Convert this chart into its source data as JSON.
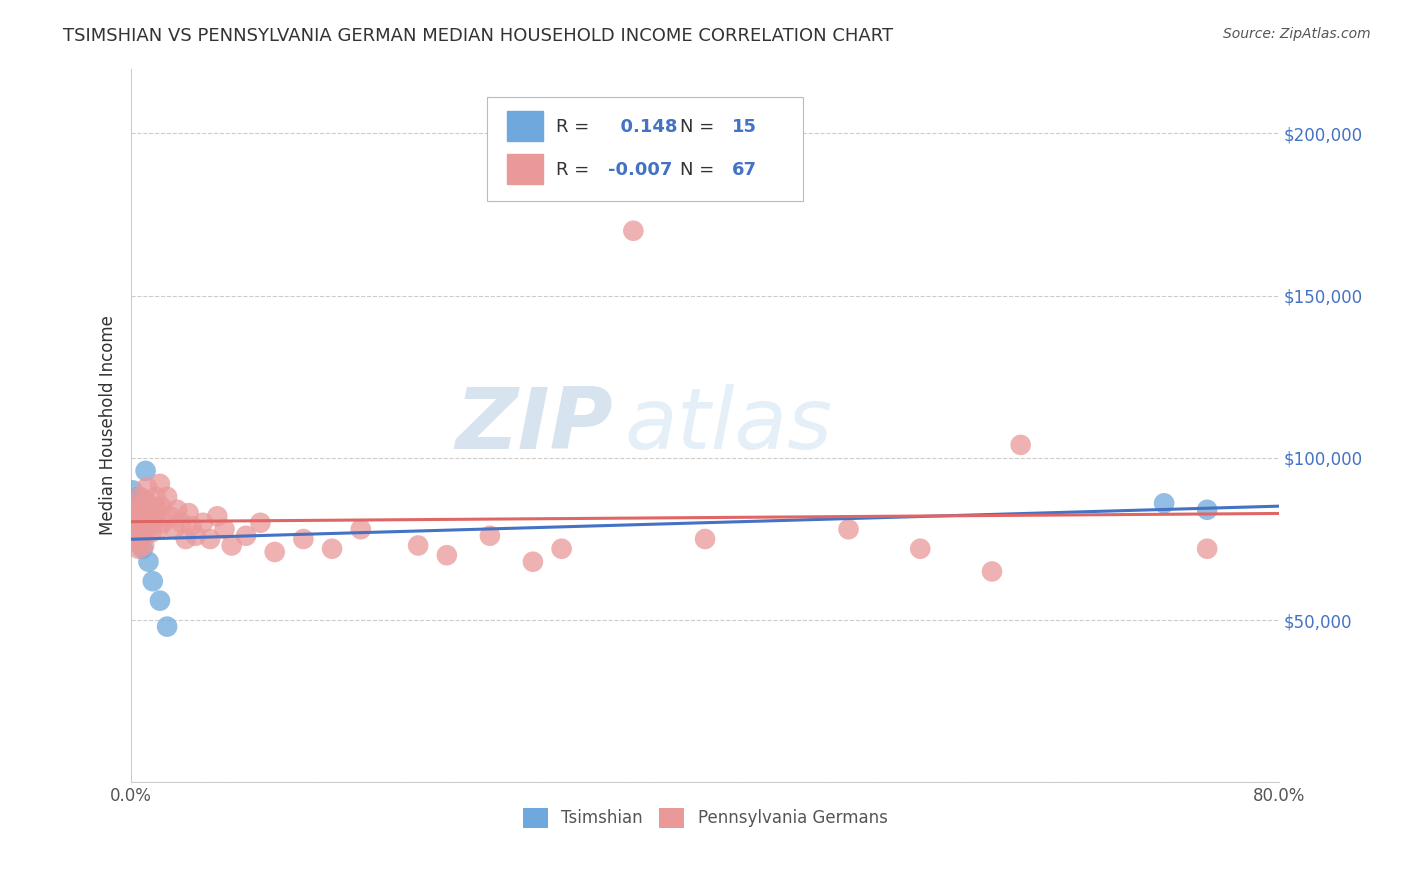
{
  "title": "TSIMSHIAN VS PENNSYLVANIA GERMAN MEDIAN HOUSEHOLD INCOME CORRELATION CHART",
  "source": "Source: ZipAtlas.com",
  "ylabel": "Median Household Income",
  "watermark_zip": "ZIP",
  "watermark_atlas": "atlas",
  "series": [
    {
      "name": "Tsimshian",
      "color_scatter": "#6fa8dc",
      "color_line": "#4472c4",
      "R": 0.148,
      "N": 15,
      "x": [
        0.001,
        0.002,
        0.003,
        0.004,
        0.005,
        0.006,
        0.007,
        0.008,
        0.01,
        0.012,
        0.015,
        0.02,
        0.025,
        0.72,
        0.75
      ],
      "y": [
        90000,
        78000,
        83000,
        75000,
        88000,
        82000,
        76000,
        72000,
        96000,
        68000,
        62000,
        56000,
        48000,
        86000,
        84000
      ]
    },
    {
      "name": "Pennsylvania Germans",
      "color_scatter": "#ea9999",
      "color_line": "#e06666",
      "R": -0.007,
      "N": 67,
      "x": [
        0.001,
        0.002,
        0.002,
        0.003,
        0.003,
        0.004,
        0.004,
        0.005,
        0.005,
        0.005,
        0.006,
        0.006,
        0.006,
        0.007,
        0.007,
        0.008,
        0.008,
        0.009,
        0.009,
        0.01,
        0.01,
        0.011,
        0.012,
        0.012,
        0.013,
        0.014,
        0.015,
        0.015,
        0.016,
        0.017,
        0.018,
        0.019,
        0.02,
        0.021,
        0.022,
        0.025,
        0.027,
        0.03,
        0.032,
        0.035,
        0.038,
        0.04,
        0.042,
        0.045,
        0.05,
        0.055,
        0.06,
        0.065,
        0.07,
        0.08,
        0.09,
        0.1,
        0.12,
        0.14,
        0.16,
        0.2,
        0.22,
        0.25,
        0.28,
        0.3,
        0.35,
        0.4,
        0.5,
        0.55,
        0.6,
        0.62,
        0.75
      ],
      "y": [
        78000,
        82000,
        75000,
        80000,
        74000,
        85000,
        79000,
        83000,
        76000,
        72000,
        88000,
        81000,
        77000,
        85000,
        79000,
        83000,
        76000,
        80000,
        73000,
        87000,
        82000,
        91000,
        85000,
        79000,
        83000,
        77000,
        85000,
        80000,
        82000,
        88000,
        84000,
        78000,
        92000,
        85000,
        80000,
        88000,
        82000,
        78000,
        84000,
        80000,
        75000,
        83000,
        79000,
        76000,
        80000,
        75000,
        82000,
        78000,
        73000,
        76000,
        80000,
        71000,
        75000,
        72000,
        78000,
        73000,
        70000,
        76000,
        68000,
        72000,
        170000,
        75000,
        78000,
        72000,
        65000,
        104000,
        72000
      ]
    }
  ],
  "yticks": [
    0,
    50000,
    100000,
    150000,
    200000
  ],
  "ytick_labels": [
    "",
    "$50,000",
    "$100,000",
    "$150,000",
    "$200,000"
  ],
  "xticks": [
    0.0,
    0.1,
    0.2,
    0.3,
    0.4,
    0.5,
    0.6,
    0.7,
    0.8
  ],
  "xtick_labels_show": [
    "0.0%",
    "",
    "",
    "",
    "",
    "",
    "",
    "",
    "80.0%"
  ],
  "ylim": [
    0,
    220000
  ],
  "xlim": [
    0.0,
    0.8
  ],
  "background_color": "#ffffff",
  "grid_color": "#cccccc",
  "title_color": "#333333",
  "ytick_color": "#4472c4",
  "legend_text_color": "#333333",
  "legend_num_color": "#4472c4",
  "source_color": "#555555"
}
